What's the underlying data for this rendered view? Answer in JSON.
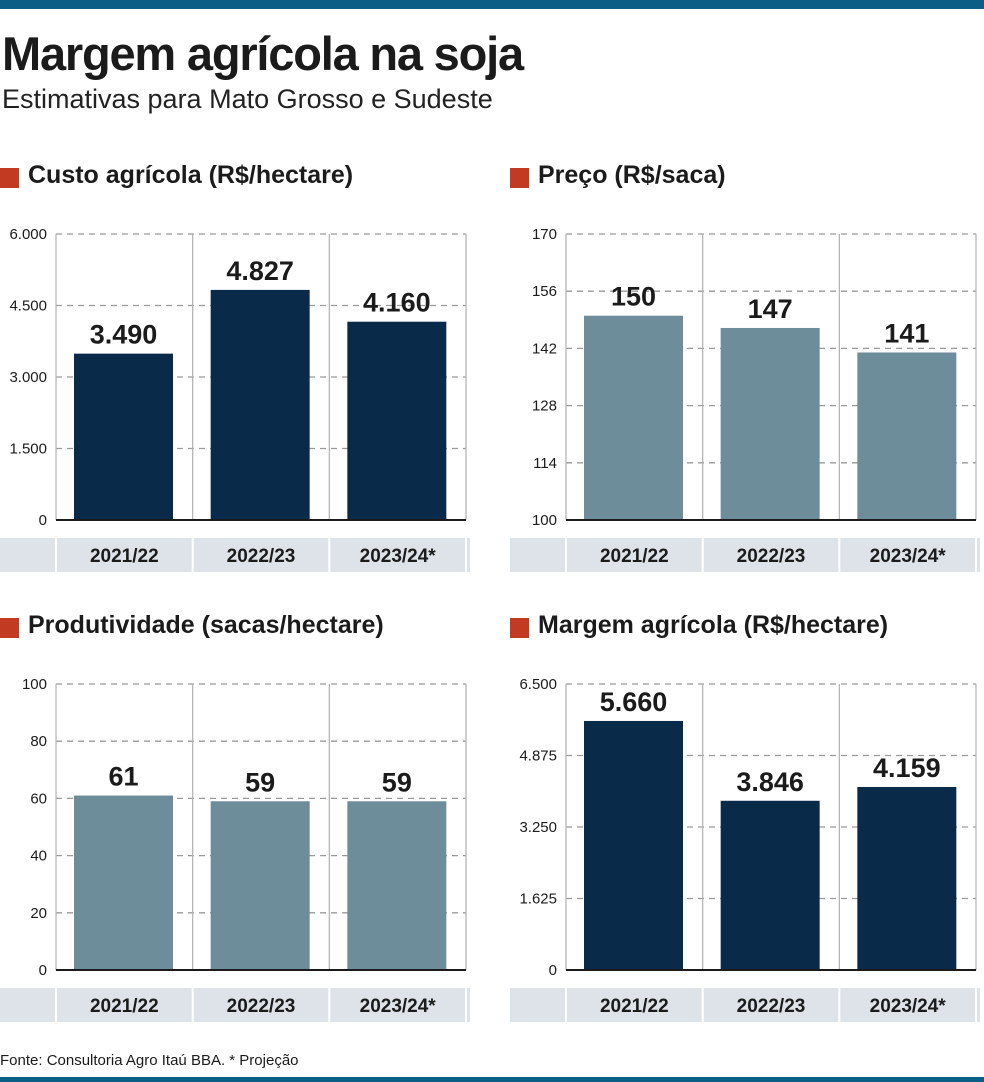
{
  "header": {
    "title": "Margem agrícola na soja",
    "subtitle": "Estimativas para Mato Grosso e Sudeste"
  },
  "colors": {
    "dark_bar": "#0a2a4a",
    "light_bar": "#6e8d9b",
    "accent": "#c23a22",
    "axis_band": "#dde3e8",
    "top_rule": "#0b5f86"
  },
  "footer": {
    "source": "Fonte: Consultoria Agro Itaú BBA. * Projeção"
  },
  "chart_data": [
    {
      "type": "bar",
      "title": "Custo agrícola (R$/hectare)",
      "categories": [
        "2021/22",
        "2022/23",
        "2023/24*"
      ],
      "values": [
        3490,
        4827,
        4160
      ],
      "value_labels": [
        "3.490",
        "4.827",
        "4.160"
      ],
      "ylim": [
        0,
        6000
      ],
      "yticks": [
        "0",
        "1.500",
        "3.000",
        "4.500",
        "6.000"
      ],
      "bar_color": "dark"
    },
    {
      "type": "bar",
      "title": "Preço (R$/saca)",
      "categories": [
        "2021/22",
        "2022/23",
        "2023/24*"
      ],
      "values": [
        150,
        147,
        141
      ],
      "value_labels": [
        "150",
        "147",
        "141"
      ],
      "ylim": [
        100,
        170
      ],
      "yticks": [
        "100",
        "114",
        "128",
        "142",
        "156",
        "170"
      ],
      "bar_color": "light"
    },
    {
      "type": "bar",
      "title": "Produtividade (sacas/hectare)",
      "categories": [
        "2021/22",
        "2022/23",
        "2023/24*"
      ],
      "values": [
        61,
        59,
        59
      ],
      "value_labels": [
        "61",
        "59",
        "59"
      ],
      "ylim": [
        0,
        100
      ],
      "yticks": [
        "0",
        "20",
        "40",
        "60",
        "80",
        "100"
      ],
      "bar_color": "light"
    },
    {
      "type": "bar",
      "title": "Margem agrícola (R$/hectare)",
      "categories": [
        "2021/22",
        "2022/23",
        "2023/24*"
      ],
      "values": [
        5660,
        3846,
        4159
      ],
      "value_labels": [
        "5.660",
        "3.846",
        "4.159"
      ],
      "ylim": [
        0,
        6500
      ],
      "yticks": [
        "0",
        "1.625",
        "3.250",
        "4.875",
        "6.500"
      ],
      "bar_color": "dark"
    }
  ]
}
